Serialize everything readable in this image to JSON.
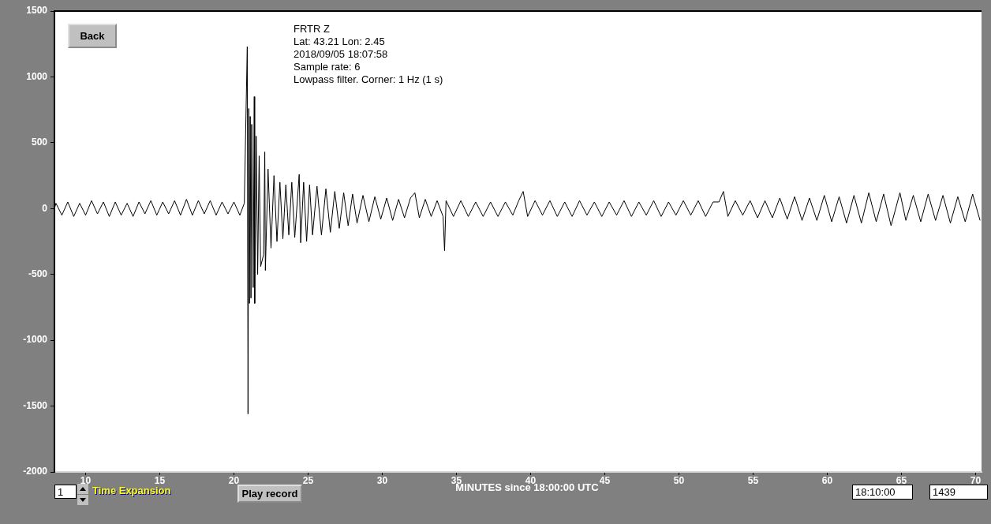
{
  "chart_data": {
    "type": "line",
    "title": "FRTR  Z",
    "annotations": [
      "Lat: 43.21 Lon: 2.45",
      "2018/09/05 18:07:58",
      "Sample rate: 6",
      "Lowpass filter. Corner: 1 Hz (1 s)",
      "Back",
      "1",
      "Time Expansion",
      "Play record",
      "18:10:00",
      "1439"
    ],
    "xlabel": "MINUTES since 18:00:00 UTC",
    "xlim": [
      7.9,
      70.4
    ],
    "xticks": [
      10,
      15,
      20,
      25,
      30,
      35,
      40,
      45,
      50,
      55,
      60,
      65,
      70
    ],
    "ylim": [
      -2000,
      1500
    ],
    "yticks": [
      -2000,
      -1500,
      -1000,
      -500,
      0,
      500,
      1000,
      1500
    ],
    "grid": false,
    "legend": false,
    "marker": "none",
    "line_style": "solid",
    "series": [
      {
        "color": "#000000",
        "x": [
          7.9,
          8.0,
          8.4,
          8.8,
          9.2,
          9.6,
          10.0,
          10.4,
          10.8,
          11.2,
          11.6,
          12.0,
          12.4,
          12.8,
          13.2,
          13.6,
          14.0,
          14.4,
          14.8,
          15.2,
          15.6,
          16.0,
          16.4,
          16.8,
          17.2,
          17.6,
          18.0,
          18.4,
          18.8,
          19.2,
          19.6,
          20.0,
          20.4,
          20.7,
          20.9,
          20.95,
          21.0,
          21.05,
          21.1,
          21.15,
          21.2,
          21.3,
          21.37,
          21.4,
          21.5,
          21.6,
          21.7,
          21.8,
          22.0,
          22.08,
          22.12,
          22.3,
          22.5,
          22.7,
          22.9,
          23.1,
          23.3,
          23.5,
          23.7,
          23.9,
          24.1,
          24.4,
          24.5,
          24.7,
          24.9,
          25.1,
          25.3,
          25.6,
          25.9,
          26.2,
          26.5,
          26.8,
          27.1,
          27.4,
          27.7,
          28.0,
          28.3,
          28.7,
          29.1,
          29.5,
          29.9,
          30.3,
          30.7,
          31.1,
          31.5,
          31.9,
          32.2,
          32.5,
          32.9,
          33.3,
          33.7,
          34.1,
          34.2,
          34.3,
          34.8,
          35.3,
          35.8,
          36.3,
          36.8,
          37.3,
          37.8,
          38.3,
          38.8,
          39.2,
          39.5,
          39.8,
          40.3,
          40.8,
          41.3,
          41.8,
          42.3,
          42.8,
          43.3,
          43.8,
          44.3,
          44.8,
          45.3,
          45.8,
          46.3,
          46.8,
          47.3,
          47.8,
          48.3,
          48.8,
          49.3,
          49.8,
          50.3,
          50.8,
          51.3,
          51.8,
          52.3,
          52.7,
          53.0,
          53.3,
          53.8,
          54.3,
          54.8,
          55.3,
          55.8,
          56.3,
          56.8,
          57.3,
          57.8,
          58.3,
          58.8,
          59.3,
          59.8,
          60.3,
          60.8,
          61.3,
          61.8,
          62.3,
          62.8,
          63.3,
          63.8,
          64.3,
          64.9,
          65.3,
          65.8,
          66.3,
          66.8,
          67.3,
          67.8,
          68.3,
          68.8,
          69.3,
          69.8,
          70.3
        ],
        "values": [
          0,
          40,
          -50,
          50,
          -60,
          40,
          -50,
          60,
          -40,
          50,
          -60,
          50,
          -50,
          40,
          -60,
          50,
          -40,
          60,
          -50,
          50,
          -40,
          60,
          -50,
          70,
          -50,
          60,
          -40,
          60,
          -50,
          50,
          -40,
          50,
          -50,
          40,
          1230,
          -1560,
          760,
          -720,
          700,
          -680,
          640,
          -600,
          850,
          -720,
          550,
          -500,
          400,
          -440,
          -350,
          430,
          -470,
          300,
          -300,
          250,
          -250,
          200,
          -230,
          180,
          -200,
          200,
          -220,
          260,
          -260,
          200,
          -250,
          180,
          -200,
          170,
          -200,
          150,
          -180,
          130,
          -150,
          120,
          -130,
          110,
          -110,
          100,
          -100,
          90,
          -80,
          80,
          -90,
          70,
          -70,
          80,
          120,
          -70,
          70,
          -60,
          60,
          -60,
          -320,
          60,
          -60,
          60,
          -60,
          50,
          -60,
          50,
          -60,
          50,
          -50,
          60,
          130,
          -60,
          60,
          -50,
          60,
          -60,
          50,
          -60,
          60,
          -50,
          50,
          -60,
          50,
          -50,
          60,
          -60,
          50,
          -50,
          60,
          -60,
          50,
          -50,
          60,
          -50,
          60,
          -60,
          50,
          50,
          130,
          -60,
          60,
          -50,
          60,
          -70,
          60,
          -70,
          80,
          -80,
          90,
          -90,
          80,
          -90,
          100,
          -100,
          90,
          -110,
          100,
          -110,
          120,
          -100,
          110,
          -130,
          120,
          -90,
          100,
          -100,
          110,
          -90,
          100,
          -110,
          90,
          -100,
          110,
          -90
        ]
      }
    ]
  }
}
